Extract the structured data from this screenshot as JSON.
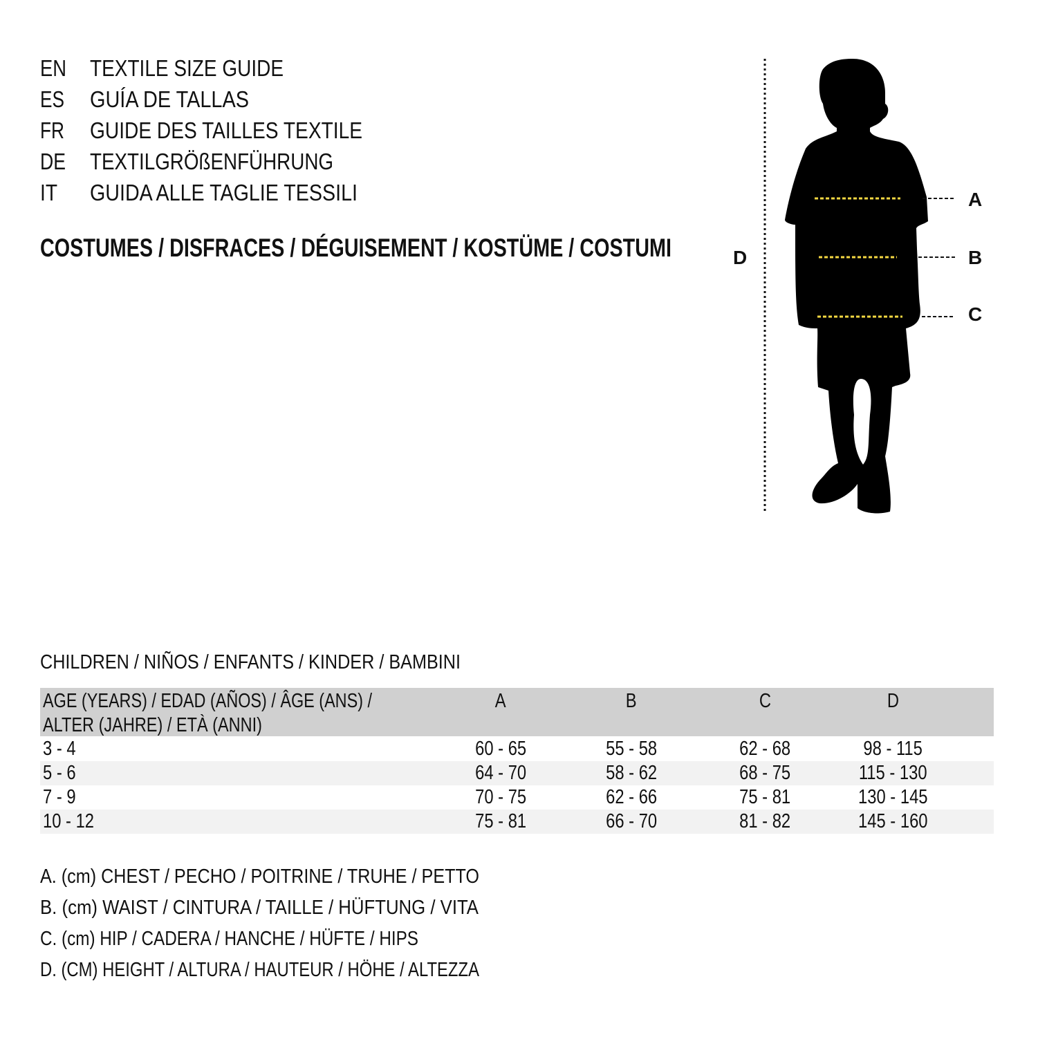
{
  "languages": [
    {
      "code": "EN",
      "title": "TEXTILE SIZE GUIDE"
    },
    {
      "code": "ES",
      "title": "GUÍA DE TALLAS"
    },
    {
      "code": "FR",
      "title": "GUIDE DES TAILLES TEXTILE"
    },
    {
      "code": "DE",
      "title": "TEXTILGRÖßENFÜHRUNG"
    },
    {
      "code": "IT",
      "title": "GUIDA ALLE TAGLIE TESSILI"
    }
  ],
  "category": "COSTUMES / DISFRACES / DÉGUISEMENT / KOSTÜME / COSTUMI",
  "diagram": {
    "labels": {
      "a": "A",
      "b": "B",
      "c": "C",
      "d": "D"
    },
    "measure_line_color": "#f5d742",
    "silhouette_color": "#000000"
  },
  "table": {
    "title": "CHILDREN / NIÑOS / ENFANTS / KINDER / BAMBINI",
    "header_bg": "#d0d0d0",
    "stripe_bg": "#f2f2f2",
    "headers": {
      "age_line1": "AGE (YEARS) / EDAD (AÑOS) / ÂGE (ANS) /",
      "age_line2": "ALTER (JAHRE) / ETÀ (ANNI)",
      "a": "A",
      "b": "B",
      "c": "C",
      "d": "D"
    },
    "rows": [
      {
        "age": "3 - 4",
        "a": "60 - 65",
        "b": "55 - 58",
        "c": "62 - 68",
        "d": "98 - 115"
      },
      {
        "age": "5 - 6",
        "a": "64 - 70",
        "b": "58 - 62",
        "c": "68 - 75",
        "d": "115 - 130"
      },
      {
        "age": "7 - 9",
        "a": "70 - 75",
        "b": "62 - 66",
        "c": "75 - 81",
        "d": "130 - 145"
      },
      {
        "age": "10 - 12",
        "a": "75 - 81",
        "b": "66 - 70",
        "c": "81 - 82",
        "d": "145 - 160"
      }
    ]
  },
  "legend": [
    "A. (cm) CHEST / PECHO / POITRINE / TRUHE / PETTO",
    "B. (cm) WAIST / CINTURA / TAILLE / HÜFTUNG / VITA",
    "C. (cm) HIP / CADERA / HANCHE / HÜFTE / HIPS",
    "D. (CM) HEIGHT / ALTURA / HAUTEUR / HÖHE / ALTEZZA"
  ]
}
